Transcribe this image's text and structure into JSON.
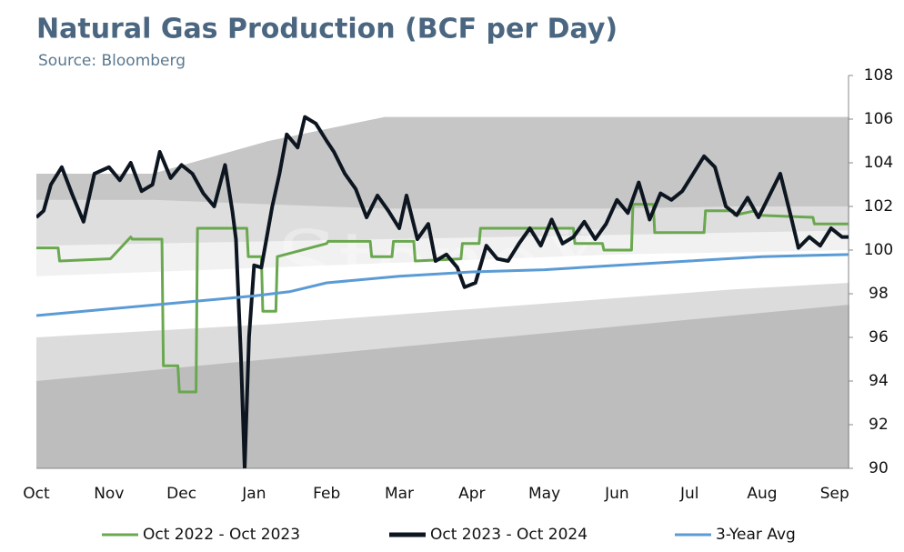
{
  "chart_data": {
    "type": "line",
    "title": "Natural Gas Production (BCF per Day)",
    "subtitle": "Source: Bloomberg",
    "watermark": "StoneX",
    "categories": [
      "Oct",
      "Nov",
      "Dec",
      "Jan",
      "Feb",
      "Mar",
      "Apr",
      "May",
      "Jun",
      "Jul",
      "Aug",
      "Sep"
    ],
    "xlim": [
      0,
      11.2
    ],
    "ylim": [
      90,
      108
    ],
    "yticks": [
      90,
      92,
      94,
      96,
      98,
      100,
      102,
      104,
      106,
      108
    ],
    "bands_x": [
      0,
      1.6,
      3.2,
      4.8,
      6.4,
      8,
      9.6,
      11.2
    ],
    "bands": [
      {
        "color": "#c6c6c6",
        "values": [
          103.5,
          103.5,
          105,
          106.1,
          106.1,
          106.1,
          106.1,
          106.1
        ]
      },
      {
        "color": "#dedede",
        "values": [
          102.3,
          102.3,
          102.1,
          101.9,
          101.9,
          101.9,
          102,
          102
        ]
      },
      {
        "color": "#f1f1f1",
        "values": [
          100.2,
          100.3,
          100.4,
          100.5,
          100.6,
          100.7,
          100.8,
          100.9
        ]
      },
      {
        "color": "#ffffff",
        "values": [
          98.8,
          99,
          99.2,
          99.4,
          99.6,
          99.8,
          99.9,
          100
        ]
      },
      {
        "color": "#dcdcdc",
        "values": [
          96,
          96.3,
          96.6,
          97,
          97.4,
          97.8,
          98.2,
          98.5
        ]
      },
      {
        "color": "#bdbdbd",
        "values": [
          94,
          94.5,
          95,
          95.5,
          96,
          96.5,
          97,
          97.5
        ]
      }
    ],
    "series": [
      {
        "name": "Oct 2022 - Oct 2023",
        "color": "#6aa84f",
        "x": [
          0,
          0.3,
          0.32,
          1.0,
          1.02,
          1.3,
          1.32,
          1.73,
          1.75,
          1.95,
          1.97,
          2.2,
          2.22,
          2.9,
          2.92,
          3.1,
          3.12,
          3.3,
          3.32,
          4.0,
          4.02,
          4.6,
          4.62,
          4.9,
          4.92,
          5.2,
          5.22,
          5.85,
          5.87,
          6.1,
          6.12,
          7.4,
          7.42,
          7.8,
          7.82,
          8.2,
          8.22,
          8.5,
          8.52,
          9.2,
          9.22,
          9.6,
          9.62,
          9.9,
          9.92,
          10.7,
          10.72,
          11.2
        ],
        "values": [
          100.1,
          100.1,
          99.5,
          99.6,
          99.6,
          100.6,
          100.5,
          100.5,
          94.7,
          94.7,
          93.5,
          93.5,
          101,
          101,
          99.7,
          99.7,
          97.2,
          97.2,
          99.7,
          100.3,
          100.4,
          100.4,
          99.7,
          99.7,
          100.4,
          100.4,
          99.5,
          99.6,
          100.3,
          100.3,
          101,
          101,
          100.3,
          100.3,
          100,
          100,
          102.1,
          102.1,
          100.8,
          100.8,
          101.8,
          101.8,
          101.6,
          101.8,
          101.6,
          101.5,
          101.2,
          101.2
        ]
      },
      {
        "name": "Oct 2023 - Oct 2024",
        "color": "#0d1620",
        "x": [
          0,
          0.1,
          0.2,
          0.35,
          0.5,
          0.65,
          0.8,
          1.0,
          1.15,
          1.3,
          1.45,
          1.6,
          1.7,
          1.85,
          2.0,
          2.15,
          2.3,
          2.45,
          2.6,
          2.7,
          2.75,
          2.82,
          2.87,
          2.93,
          3.0,
          3.1,
          3.25,
          3.35,
          3.45,
          3.6,
          3.7,
          3.85,
          4.0,
          4.1,
          4.25,
          4.4,
          4.55,
          4.7,
          4.85,
          5.0,
          5.1,
          5.25,
          5.4,
          5.5,
          5.65,
          5.8,
          5.9,
          6.05,
          6.2,
          6.35,
          6.5,
          6.65,
          6.8,
          6.95,
          7.1,
          7.25,
          7.4,
          7.55,
          7.7,
          7.85,
          8.0,
          8.15,
          8.3,
          8.45,
          8.6,
          8.75,
          8.9,
          9.05,
          9.2,
          9.35,
          9.5,
          9.65,
          9.8,
          9.95,
          10.1,
          10.25,
          10.4,
          10.5,
          10.65,
          10.8,
          10.95,
          11.1,
          11.2
        ],
        "values": [
          101.5,
          101.8,
          103,
          103.8,
          102.5,
          101.3,
          103.5,
          103.8,
          103.2,
          104,
          102.7,
          103,
          104.5,
          103.3,
          103.9,
          103.5,
          102.6,
          102,
          103.9,
          101.8,
          100.5,
          95,
          90,
          96,
          99.3,
          99.2,
          102,
          103.5,
          105.3,
          104.7,
          106.1,
          105.8,
          105,
          104.5,
          103.5,
          102.8,
          101.5,
          102.5,
          101.8,
          101,
          102.5,
          100.5,
          101.2,
          99.5,
          99.8,
          99.2,
          98.3,
          98.5,
          100.2,
          99.6,
          99.5,
          100.3,
          101,
          100.2,
          101.4,
          100.3,
          100.6,
          101.3,
          100.5,
          101.2,
          102.3,
          101.7,
          103.1,
          101.4,
          102.6,
          102.3,
          102.7,
          103.5,
          104.3,
          103.8,
          102,
          101.6,
          102.4,
          101.5,
          102.5,
          103.5,
          101.5,
          100.1,
          100.6,
          100.2,
          101,
          100.6,
          100.6
        ]
      },
      {
        "name": "3-Year Avg",
        "color": "#5b9bd5",
        "x": [
          0,
          1,
          2,
          3,
          3.5,
          4,
          5,
          6,
          7,
          8,
          9,
          10,
          11.2
        ],
        "values": [
          97,
          97.3,
          97.6,
          97.9,
          98.1,
          98.5,
          98.8,
          99,
          99.1,
          99.3,
          99.5,
          99.7,
          99.8
        ]
      }
    ]
  }
}
